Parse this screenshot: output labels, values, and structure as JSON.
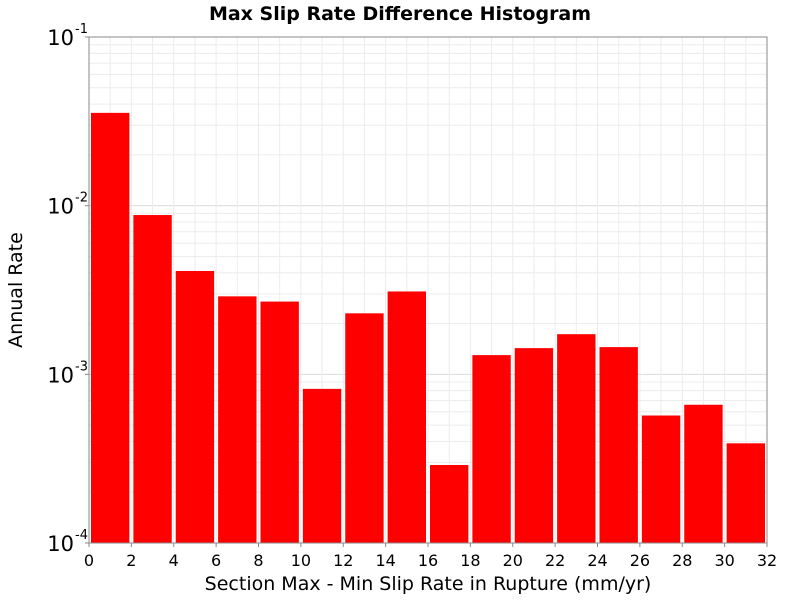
{
  "chart_data": {
    "type": "bar",
    "title": "Max Slip Rate Difference Histogram",
    "xlabel": "Section Max - Min Slip Rate in Rupture (mm/yr)",
    "ylabel": "Annual Rate",
    "y_scale": "log",
    "ylim": [
      0.0001,
      0.1
    ],
    "xlim": [
      0,
      32
    ],
    "bin_width": 2,
    "bar_color": "#ff0000",
    "grid": true,
    "x_ticks": [
      "0",
      "2",
      "4",
      "6",
      "8",
      "10",
      "12",
      "14",
      "16",
      "18",
      "20",
      "22",
      "24",
      "26",
      "28",
      "30",
      "32"
    ],
    "y_ticks": [
      {
        "base": "10",
        "exp": "-4"
      },
      {
        "base": "10",
        "exp": "-3"
      },
      {
        "base": "10",
        "exp": "-2"
      },
      {
        "base": "10",
        "exp": "-1"
      }
    ],
    "bins": [
      {
        "x": 1,
        "value": 0.0355
      },
      {
        "x": 3,
        "value": 0.0088
      },
      {
        "x": 5,
        "value": 0.0041
      },
      {
        "x": 7,
        "value": 0.0029
      },
      {
        "x": 9,
        "value": 0.0027
      },
      {
        "x": 11,
        "value": 0.00082
      },
      {
        "x": 13,
        "value": 0.0023
      },
      {
        "x": 15,
        "value": 0.0031
      },
      {
        "x": 17,
        "value": 0.00029
      },
      {
        "x": 19,
        "value": 0.0013
      },
      {
        "x": 21,
        "value": 0.00143
      },
      {
        "x": 23,
        "value": 0.00173
      },
      {
        "x": 25,
        "value": 0.00145
      },
      {
        "x": 27,
        "value": 0.00057
      },
      {
        "x": 29,
        "value": 0.00066
      },
      {
        "x": 31,
        "value": 0.00039
      }
    ]
  }
}
